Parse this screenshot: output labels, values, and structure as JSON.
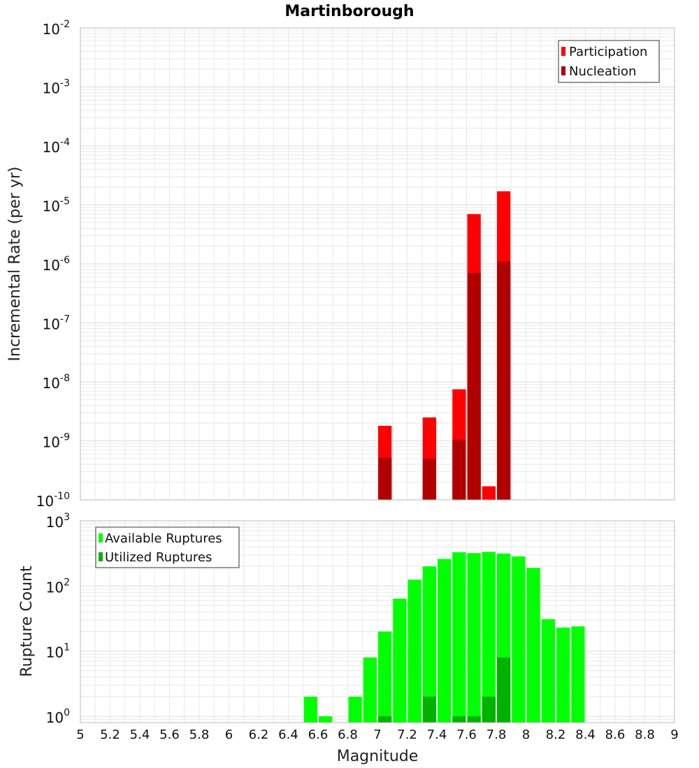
{
  "title": "Martinborough",
  "xlabel": "Magnitude",
  "colors": {
    "participation": "#ff0000",
    "nucleation": "#b20000",
    "available": "#00ff00",
    "utilized": "#00b200",
    "grid": "#e8e8e8",
    "frame": "#bbbbbb"
  },
  "x_ticks": [
    "5",
    "5.2",
    "5.4",
    "5.6",
    "5.8",
    "6",
    "6.2",
    "6.4",
    "6.6",
    "6.8",
    "7",
    "7.2",
    "7.4",
    "7.6",
    "7.8",
    "8",
    "8.2",
    "8.4",
    "8.6",
    "8.8",
    "9"
  ],
  "chart_data": [
    {
      "type": "bar",
      "scale": "log",
      "ylabel": "Incremental Rate (per yr)",
      "xlim": [
        5,
        9
      ],
      "ylim": [
        1e-10,
        0.01
      ],
      "y_ticks": [
        {
          "base": "10",
          "exp": "-2"
        },
        {
          "base": "10",
          "exp": "-3"
        },
        {
          "base": "10",
          "exp": "-4"
        },
        {
          "base": "10",
          "exp": "-5"
        },
        {
          "base": "10",
          "exp": "-6"
        },
        {
          "base": "10",
          "exp": "-7"
        },
        {
          "base": "10",
          "exp": "-8"
        },
        {
          "base": "10",
          "exp": "-9"
        },
        {
          "base": "10",
          "exp": "-10"
        }
      ],
      "legend": {
        "position": "top-right"
      },
      "series": [
        {
          "name": "Participation",
          "color": "#ff0000",
          "x": [
            7.05,
            7.35,
            7.55,
            7.65,
            7.75,
            7.85
          ],
          "values": [
            1.8e-09,
            2.5e-09,
            7.5e-09,
            7e-06,
            1.7e-10,
            1.7e-05
          ]
        },
        {
          "name": "Nucleation",
          "color": "#b20000",
          "x": [
            7.05,
            7.35,
            7.55,
            7.65,
            7.85
          ],
          "values": [
            5.2e-10,
            5e-10,
            1.05e-09,
            7e-07,
            1.1e-06
          ]
        }
      ]
    },
    {
      "type": "bar",
      "scale": "log",
      "ylabel": "Rupture Count",
      "xlim": [
        5,
        9
      ],
      "ylim": [
        0.8,
        1000
      ],
      "y_ticks": [
        {
          "base": "10",
          "exp": "3"
        },
        {
          "base": "10",
          "exp": "2"
        },
        {
          "base": "10",
          "exp": "1"
        },
        {
          "base": "10",
          "exp": "0"
        }
      ],
      "legend": {
        "position": "top-left"
      },
      "series": [
        {
          "name": "Available Ruptures",
          "color": "#00ff00",
          "x": [
            6.55,
            6.65,
            6.85,
            6.95,
            7.05,
            7.15,
            7.25,
            7.35,
            7.45,
            7.55,
            7.65,
            7.75,
            7.85,
            7.95,
            8.05,
            8.15,
            8.25,
            8.35
          ],
          "values": [
            2,
            1,
            2,
            8,
            20,
            64,
            125,
            200,
            260,
            330,
            320,
            335,
            315,
            285,
            190,
            31,
            23,
            24
          ]
        },
        {
          "name": "Utilized Ruptures",
          "color": "#00b200",
          "x": [
            7.05,
            7.35,
            7.55,
            7.65,
            7.75,
            7.85
          ],
          "values": [
            1,
            2,
            1,
            1,
            2,
            8
          ]
        }
      ]
    }
  ]
}
